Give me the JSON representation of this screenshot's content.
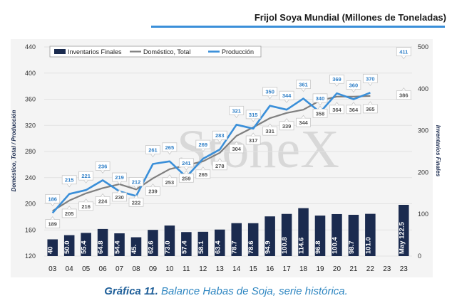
{
  "chart_data": {
    "type": "bar",
    "title": "Frijol Soya Mundial (Millones de Toneladas)",
    "categories": [
      "03",
      "04",
      "05",
      "06",
      "07",
      "08",
      "09",
      "10",
      "11",
      "12",
      "13",
      "14",
      "15",
      "16",
      "17",
      "18",
      "19",
      "20",
      "21",
      "22",
      "23",
      "23"
    ],
    "series": [
      {
        "name": "Inventarios Finales",
        "type": "bar",
        "axis": "right",
        "values": [
          40.0,
          50.0,
          55.4,
          64.8,
          54.4,
          45.0,
          62.6,
          73.0,
          57.4,
          58.1,
          63.4,
          78.7,
          78.6,
          94.9,
          100.8,
          114.6,
          96.8,
          100.4,
          98.7,
          101.0,
          null,
          122.5
        ],
        "labels": [
          "40",
          "50.0",
          "55.4",
          "64.8",
          "54.4",
          "45.",
          "62.6",
          "73.0",
          "57.4",
          "58.1",
          "63.4",
          "78.7",
          "78.6",
          "94.9",
          "100.8",
          "114.6",
          "96.8",
          "100.4",
          "98.7",
          "101.0",
          "",
          "May 122.5"
        ]
      },
      {
        "name": "Doméstico, Total",
        "type": "line",
        "axis": "left",
        "values": [
          189,
          205,
          216,
          224,
          230,
          222,
          239,
          253,
          259,
          265,
          278,
          304,
          317,
          331,
          339,
          344,
          358,
          364,
          364,
          365,
          null,
          386
        ]
      },
      {
        "name": "Producción",
        "type": "line",
        "axis": "left",
        "values": [
          186,
          215,
          221,
          236,
          219,
          212,
          261,
          265,
          241,
          269,
          283,
          321,
          315,
          350,
          344,
          361,
          340,
          369,
          360,
          370,
          null,
          411
        ]
      }
    ],
    "ylabel": "Doméstico, Total / Producción",
    "ylabel_right": "Inventarios Finales",
    "ylim": [
      120,
      440
    ],
    "yticks": [
      "120",
      "160",
      "200",
      "240",
      "280",
      "320",
      "360",
      "400",
      "440"
    ],
    "ylim_right": [
      0,
      500
    ],
    "yticks_right": [
      "0",
      "100",
      "200",
      "300",
      "400",
      "500"
    ],
    "legend_position": "top-left",
    "watermark": "StoneX"
  },
  "caption": {
    "bold": "Gráfica 11.",
    "text": " Balance Habas de Soja, serie histórica."
  },
  "colors": {
    "bar": "#1b2b4f",
    "domestico": "#7f7f7f",
    "produccion": "#3a8fd9",
    "title_rule": "#3a8fd9",
    "plot_bg": "#f5f5f5",
    "caption": "#2e86c1"
  }
}
